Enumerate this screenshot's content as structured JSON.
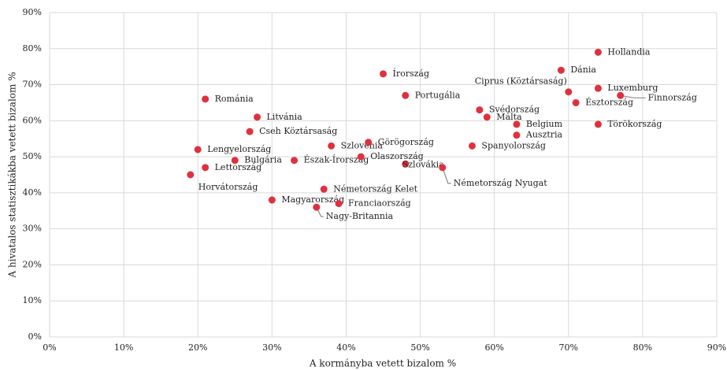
{
  "chart_data": {
    "type": "scatter",
    "x_label": "A kormányba vetett bizalom %",
    "y_label": "A hivatalos statisztikákba vetett bizalom %",
    "color": "#e0303f",
    "grid": true,
    "xlim": [
      0,
      90
    ],
    "ylim": [
      0,
      90
    ],
    "xticks": [
      {
        "value": 0,
        "label": "0%"
      },
      {
        "value": 10,
        "label": "10%"
      },
      {
        "value": 20,
        "label": "20%"
      },
      {
        "value": 30,
        "label": "30%"
      },
      {
        "value": 40,
        "label": "40%"
      },
      {
        "value": 50,
        "label": "50%"
      },
      {
        "value": 60,
        "label": "60%"
      },
      {
        "value": 70,
        "label": "70%"
      },
      {
        "value": 80,
        "label": "80%"
      },
      {
        "value": 90,
        "label": "90%"
      }
    ],
    "yticks": [
      {
        "value": 0,
        "label": "0%"
      },
      {
        "value": 10,
        "label": "10%"
      },
      {
        "value": 20,
        "label": "20%"
      },
      {
        "value": 30,
        "label": "30%"
      },
      {
        "value": 40,
        "label": "40%"
      },
      {
        "value": 50,
        "label": "50%"
      },
      {
        "value": 60,
        "label": "60%"
      },
      {
        "value": 70,
        "label": "70%"
      },
      {
        "value": 80,
        "label": "80%"
      },
      {
        "value": 90,
        "label": "90%"
      }
    ],
    "labels": [
      "Hollandia",
      "Dánia",
      "Ciprus (Köztársaság)",
      "Luxemburg",
      "Finnország",
      "Észtország",
      "Törökország",
      "Írország",
      "Portugália",
      "Svédország",
      "Málta",
      "Belgium",
      "Ausztria",
      "Spanyolország",
      "Románia",
      "Litvánia",
      "Cseh Köztársaság",
      "Lengyelország",
      "Bulgária",
      "Lettország",
      "Horvátország",
      "Szlovénia",
      "Görögország",
      "Észak-Írország",
      "Olaszország",
      "Szlovákia",
      "Németország Nyugat",
      "Németország Kelet",
      "Magyarország",
      "Franciaország",
      "Nagy-Britannia"
    ],
    "x": [
      74,
      69,
      70,
      74,
      77,
      71,
      74,
      45,
      48,
      58,
      59,
      63,
      63,
      57,
      21,
      28,
      27,
      20,
      25,
      21,
      19,
      38,
      43,
      33,
      42,
      48,
      53,
      37,
      30,
      39,
      36
    ],
    "values": [
      79,
      74,
      68,
      69,
      67,
      65,
      59,
      73,
      67,
      63,
      61,
      59,
      56,
      53,
      66,
      61,
      57,
      52,
      49,
      47,
      45,
      53,
      54,
      49,
      50,
      48,
      47,
      41,
      38,
      37,
      36
    ]
  }
}
